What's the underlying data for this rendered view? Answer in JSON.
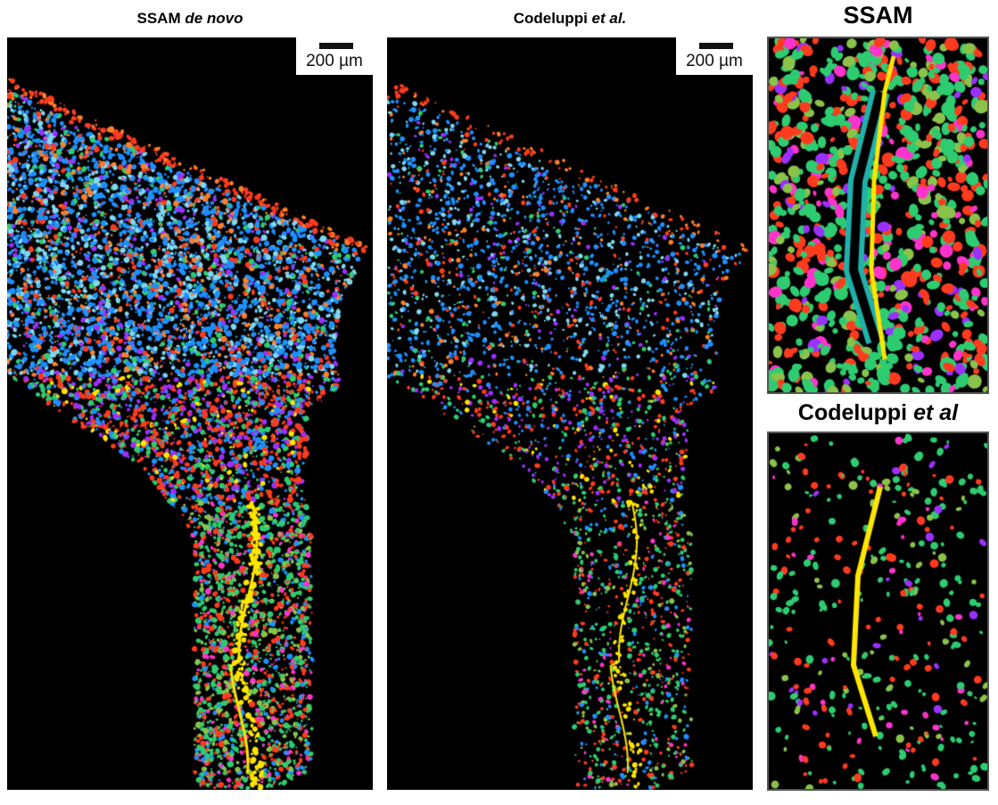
{
  "panels": [
    {
      "title_main": "SSAM ",
      "title_italic": "de novo",
      "scale_bar": "200 µm"
    },
    {
      "title_main": "Codeluppi ",
      "title_italic": "et al.",
      "scale_bar": "200 µm"
    },
    {
      "title_main": "SSAM",
      "title_italic": ""
    },
    {
      "title_main": "Codeluppi ",
      "title_italic": "et al"
    }
  ],
  "colors": {
    "background": "#000000",
    "cell_types": [
      "#1e90ff",
      "#7fd8f0",
      "#ff3b1f",
      "#ff7f2a",
      "#ffe600",
      "#2ecc71",
      "#8bc34a",
      "#ff33cc",
      "#9b30ff",
      "#20b2aa"
    ]
  }
}
